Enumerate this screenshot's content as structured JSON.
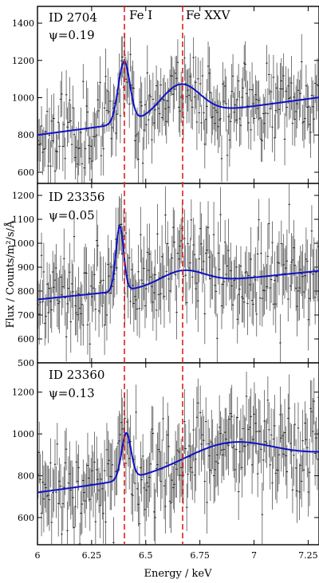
{
  "chart_data": {
    "type": "line",
    "colors": {
      "model": "#1010c8",
      "data": "#555555",
      "reference": "#e02020",
      "axes": "#000000"
    },
    "xlim": [
      6.0,
      7.3
    ],
    "xticks": [
      6,
      6.25,
      6.5,
      6.75,
      7,
      7.25
    ],
    "xtick_labels": [
      "6",
      "6.25",
      "6.5",
      "6.75",
      "7",
      "7.25"
    ],
    "xlabel": "Energy / keV",
    "ylabel": "Flux / Counts/m²/s/Å",
    "reference_lines": [
      {
        "energy": 6.4,
        "label": "Fe I"
      },
      {
        "energy": 6.67,
        "label": "Fe XXV"
      }
    ],
    "panels": [
      {
        "id_label": "ID 2704",
        "phase_label": "ψ=0.19",
        "ylim": [
          540,
          1490
        ],
        "yticks": [
          600,
          800,
          1000,
          1200,
          1400
        ],
        "ytick_labels": [
          "600",
          "800",
          "1000",
          "1200",
          "1400"
        ],
        "model": {
          "base_start": 800,
          "base_slope": 155,
          "lines": [
            {
              "center": 6.4,
              "height": 330,
              "sigma": 0.027
            },
            {
              "center": 6.66,
              "height": 170,
              "sigma": 0.09
            }
          ]
        },
        "data_scatter": 110,
        "data_error": 120
      },
      {
        "id_label": "ID 23356",
        "phase_label": "ψ=0.05",
        "ylim": [
          500,
          1250
        ],
        "yticks": [
          500,
          600,
          700,
          800,
          900,
          1000,
          1100,
          1200
        ],
        "ytick_labels": [
          "500",
          "600",
          "700",
          "800",
          "900",
          "1000",
          "1100",
          "1200"
        ],
        "model": {
          "base_start": 765,
          "base_slope": 92,
          "lines": [
            {
              "center": 6.38,
              "height": 270,
              "sigma": 0.018
            },
            {
              "center": 6.67,
              "height": 60,
              "sigma": 0.1
            }
          ]
        },
        "data_scatter": 95,
        "data_error": 110
      },
      {
        "id_label": "ID 23360",
        "phase_label": "ψ=0.13",
        "ylim": [
          470,
          1340
        ],
        "yticks": [
          600,
          800,
          1000,
          1200
        ],
        "ytick_labels": [
          "600",
          "800",
          "1000",
          "1200"
        ],
        "model": {
          "base_start": 720,
          "base_slope": 140,
          "lines": [
            {
              "center": 6.41,
              "height": 220,
              "sigma": 0.022
            },
            {
              "center": 6.88,
              "height": 115,
              "sigma": 0.2
            }
          ]
        },
        "data_scatter": 120,
        "data_error": 130
      }
    ]
  }
}
